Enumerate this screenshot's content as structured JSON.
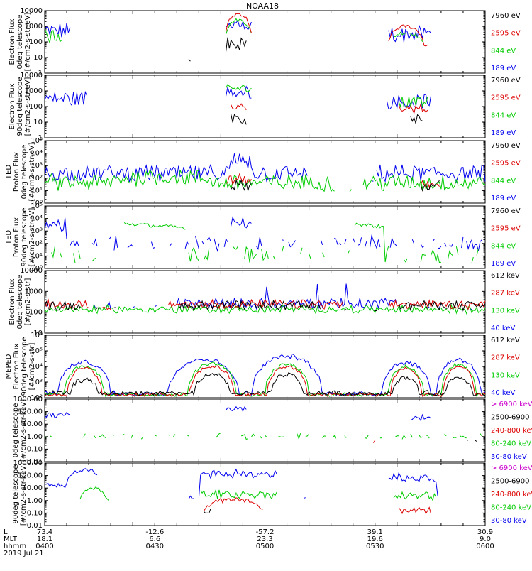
{
  "title": "NOAA18",
  "colors": {
    "black": "#000000",
    "red": "#dd0000",
    "green": "#00cc00",
    "blue": "#0000ee",
    "magenta": "#cc00cc"
  },
  "footer": {
    "row_labels": [
      "L",
      "MLT",
      "hhmm",
      "2019 Jul 21"
    ],
    "columns": [
      {
        "L": "73.4",
        "MLT": "18.1",
        "hhmm": "0400"
      },
      {
        "L": "-12.6",
        "MLT": "6.6",
        "hhmm": "0430"
      },
      {
        "L": "-57.2",
        "MLT": "23.3",
        "hhmm": "0500"
      },
      {
        "L": "39.1",
        "MLT": "19.6",
        "hhmm": "0530"
      },
      {
        "L": "30.9",
        "MLT": "9.0",
        "hhmm": "0600"
      }
    ]
  },
  "chart_data": [
    {
      "type": "line",
      "ylabel": [
        "Electron Flux",
        "0deg telescope",
        "[#/cm2-s-str-eV]"
      ],
      "yscale": "log",
      "ylim": [
        1,
        10000
      ],
      "yticks": [
        "1",
        "10",
        "100",
        "1000",
        "10000"
      ],
      "x": [
        "0400",
        "0430",
        "0500",
        "0530",
        "0600"
      ],
      "series": [
        {
          "name": "7960 eV",
          "color": "black"
        },
        {
          "name": "2595 eV",
          "color": "red"
        },
        {
          "name": "844 eV",
          "color": "green"
        },
        {
          "name": "189 eV",
          "color": "blue"
        }
      ]
    },
    {
      "type": "line",
      "ylabel": [
        "Electron Flux",
        "90deg telescope",
        "[#/cm2-s-str-eV]"
      ],
      "yscale": "log",
      "ylim": [
        1,
        10000
      ],
      "yticks": [
        "1",
        "10",
        "100",
        "1000",
        "10000"
      ],
      "x": [
        "0400",
        "0430",
        "0500",
        "0530",
        "0600"
      ],
      "series": [
        {
          "name": "7960 eV",
          "color": "black"
        },
        {
          "name": "2595 eV",
          "color": "red"
        },
        {
          "name": "844 eV",
          "color": "green"
        },
        {
          "name": "189 eV",
          "color": "blue"
        }
      ]
    },
    {
      "type": "line",
      "ylabel": [
        "TED",
        "Proton Flux",
        "0deg telescope",
        "[#/cm2-s-str-eV]"
      ],
      "yscale": "log",
      "ylim": [
        1,
        100000
      ],
      "yticks": [
        "10⁰",
        "10¹",
        "10²",
        "10³",
        "10⁴",
        "10⁵"
      ],
      "x": [
        "0400",
        "0430",
        "0500",
        "0530",
        "0600"
      ],
      "series": [
        {
          "name": "7960 eV",
          "color": "black"
        },
        {
          "name": "2595 eV",
          "color": "red"
        },
        {
          "name": "844 eV",
          "color": "green"
        },
        {
          "name": "189 eV",
          "color": "blue"
        }
      ]
    },
    {
      "type": "line",
      "ylabel": [
        "TED",
        "Proton Flux",
        "90deg telescope",
        "[#/cm2-s-str-eV]"
      ],
      "yscale": "log",
      "ylim": [
        1,
        100000
      ],
      "yticks": [
        "10⁰",
        "10¹",
        "10²",
        "10³",
        "10⁴",
        "10⁵"
      ],
      "x": [
        "0400",
        "0430",
        "0500",
        "0530",
        "0600"
      ],
      "series": [
        {
          "name": "7960 eV",
          "color": "black"
        },
        {
          "name": "2595 eV",
          "color": "red"
        },
        {
          "name": "844 eV",
          "color": "green"
        },
        {
          "name": "189 eV",
          "color": "blue"
        }
      ]
    },
    {
      "type": "line",
      "ylabel": [
        "Electron Flux",
        "0deg telescope",
        "[#/cm2-s-str]"
      ],
      "yscale": "log",
      "ylim": [
        10,
        10000
      ],
      "yticks": [
        "10",
        "100",
        "1000",
        "10000"
      ],
      "x": [
        "0400",
        "0430",
        "0500",
        "0530",
        "0600"
      ],
      "series": [
        {
          "name": "612 keV",
          "color": "black"
        },
        {
          "name": "287 keV",
          "color": "red"
        },
        {
          "name": "130 keV",
          "color": "green"
        },
        {
          "name": "40 keV",
          "color": "blue"
        }
      ]
    },
    {
      "type": "line",
      "ylabel": [
        "MEPED",
        "Electron Flux",
        "90deg telescope",
        "[#/cm2-s-str]"
      ],
      "yscale": "log",
      "ylim": [
        100,
        1000000
      ],
      "yticks": [
        "10²",
        "10³",
        "10⁴",
        "10⁵",
        "10⁶"
      ],
      "x": [
        "0400",
        "0430",
        "0500",
        "0530",
        "0600"
      ],
      "series": [
        {
          "name": "612 keV",
          "color": "black"
        },
        {
          "name": "287 keV",
          "color": "red"
        },
        {
          "name": "130 keV",
          "color": "green"
        },
        {
          "name": "40 keV",
          "color": "blue"
        }
      ]
    },
    {
      "type": "line",
      "ylabel": [
        "0deg telescope",
        "[#/cm2-s-str-keV]"
      ],
      "yscale": "log",
      "ylim": [
        0.01,
        10000
      ],
      "yticks": [
        "0.01",
        "0.10",
        "1.00",
        "10.00",
        "100.00",
        "1000.00"
      ],
      "x": [
        "0400",
        "0430",
        "0500",
        "0530",
        "0600"
      ],
      "series": [
        {
          "name": "> 6900 keV",
          "color": "magenta"
        },
        {
          "name": "2500-6900",
          "color": "black"
        },
        {
          "name": "240-800 keV",
          "color": "red"
        },
        {
          "name": "80-240 keV",
          "color": "green"
        },
        {
          "name": "30-80 keV",
          "color": "blue"
        }
      ]
    },
    {
      "type": "line",
      "ylabel": [
        "90deg telescope",
        "[#/cm2-s-str-keV]"
      ],
      "yscale": "log",
      "ylim": [
        0.01,
        10000
      ],
      "yticks": [
        "0.01",
        "0.10",
        "1.00",
        "10.00",
        "100.00",
        "1000.00"
      ],
      "x": [
        "0400",
        "0430",
        "0500",
        "0530",
        "0600"
      ],
      "series": [
        {
          "name": "> 6900 keV",
          "color": "magenta"
        },
        {
          "name": "2500-6900",
          "color": "black"
        },
        {
          "name": "240-800 keV",
          "color": "red"
        },
        {
          "name": "80-240 keV",
          "color": "green"
        },
        {
          "name": "30-80 keV",
          "color": "blue"
        }
      ]
    }
  ]
}
